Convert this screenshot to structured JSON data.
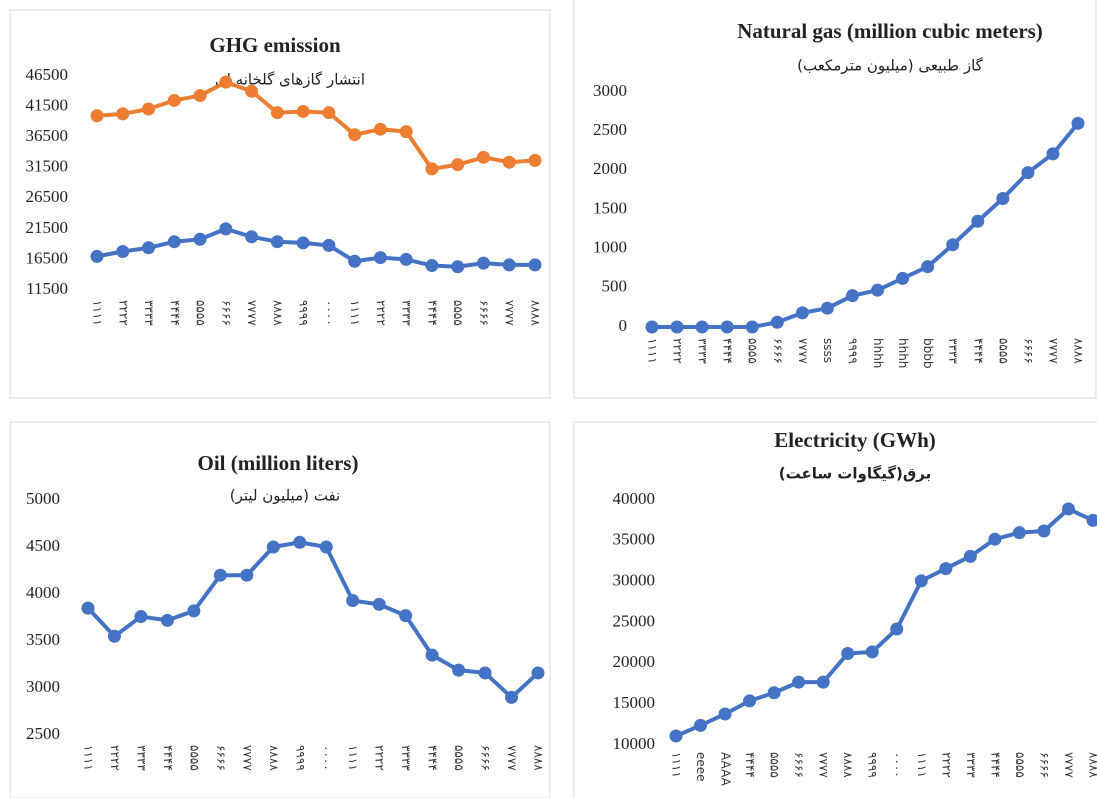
{
  "chart_data": [
    {
      "type": "line",
      "title": "GHG emission",
      "subtitle": "انتشار گازهای گلخانه ای",
      "categories": [
        "۱۱۱۱",
        "۲۲۲۲",
        "۳۳۳۳",
        "۴۴۴۴",
        "۵۵۵۵",
        "۶۶۶۶",
        "۷۷۷۷",
        "۸۸۸۸",
        "۹۹۹۹",
        "۰۰۰۰",
        "۱۱۱۱",
        "۲۲۲۲",
        "۳۳۳۳",
        "۴۴۴۴",
        "۵۵۵۵",
        "۶۶۶۶",
        "۷۷۷۷",
        "۸۸۸۸"
      ],
      "series": [
        {
          "color": "#ed7d31",
          "values": [
            40000,
            40300,
            41100,
            42500,
            43300,
            45500,
            44000,
            40500,
            40700,
            40500,
            36900,
            37800,
            37400,
            31300,
            32000,
            33200,
            32400,
            32700
          ]
        },
        {
          "color": "#4472c4",
          "values": [
            17000,
            17800,
            18400,
            19400,
            19800,
            21500,
            20200,
            19400,
            19200,
            18800,
            16200,
            16800,
            16500,
            15500,
            15300,
            15900,
            15600,
            15600
          ]
        }
      ],
      "ylim": [
        11500,
        46500
      ],
      "yticks": [
        11500,
        16500,
        21500,
        26500,
        31500,
        36500,
        41500,
        46500
      ]
    },
    {
      "type": "line",
      "title": "Natural gas (million cubic meters)",
      "subtitle": "گاز طبیعی (میلیون مترمکعب)",
      "categories": [
        "۱۱۱۱",
        "۲۲۲۲",
        "۳۳۳۳",
        "۴۴۴۴",
        "۵۵۵۵",
        "۶۶۶۶",
        "۷۷۷۷",
        "ssss",
        "۹۹۹۹",
        "hhhh",
        "hhhh",
        "bbbb",
        "۳۳۳۳",
        "۴۴۴۴",
        "۵۵۵۵",
        "۶۶۶۶",
        "۷۷۷۷",
        "۸۸۸۸"
      ],
      "series": [
        {
          "color": "#4472c4",
          "values": [
            0,
            0,
            0,
            0,
            0,
            60,
            180,
            240,
            400,
            470,
            620,
            770,
            1050,
            1350,
            1640,
            1970,
            2210,
            2600
          ]
        }
      ],
      "ylim": [
        0,
        3000
      ],
      "yticks": [
        0,
        500,
        1000,
        1500,
        2000,
        2500,
        3000
      ]
    },
    {
      "type": "line",
      "title": "Oil (million liters)",
      "subtitle": "نفت (میلیون لیتر)",
      "categories": [
        "۱۱۱۱",
        "۲۲۲۲",
        "۳۳۳۳",
        "۴۴۴۴",
        "۵۵۵۵",
        "۶۶۶۶",
        "۷۷۷۷",
        "۸۸۸۸",
        "۹۹۹۹",
        "۰۰۰۰",
        "۱۱۱۱",
        "۲۲۲۲",
        "۳۳۳۳",
        "۴۴۴۴",
        "۵۵۵۵",
        "۶۶۶۶",
        "۷۷۷۷",
        "۸۸۸۸"
      ],
      "series": [
        {
          "color": "#4472c4",
          "values": [
            3850,
            3550,
            3760,
            3720,
            3820,
            4200,
            4200,
            4500,
            4550,
            4500,
            3930,
            3890,
            3770,
            3350,
            3190,
            3160,
            2900,
            3160
          ]
        }
      ],
      "ylim": [
        2500,
        5000
      ],
      "yticks": [
        2500,
        3000,
        3500,
        4000,
        4500,
        5000
      ]
    },
    {
      "type": "line",
      "title": "Electricity (GWh)",
      "subtitle": "برق(گیگاوات ساعت)",
      "categories": [
        "۱۱۱۱",
        "eeee",
        "AAAA",
        "۴۴۴۴",
        "۵۵۵۵",
        "۶۶۶۶",
        "۷۷۷۷",
        "۸۸۸۸",
        "۹۹۹۹",
        "۰۰۰۰",
        "۱۱۱۱",
        "۲۲۲۲",
        "۳۳۳۳",
        "۴۴۴۴",
        "۵۵۵۵",
        "۶۶۶۶",
        "۷۷۷۷",
        "۸۸۸۸"
      ],
      "series": [
        {
          "color": "#4472c4",
          "values": [
            11100,
            12400,
            13800,
            15400,
            16400,
            17700,
            17700,
            21200,
            21400,
            24200,
            30100,
            31600,
            33100,
            35200,
            36000,
            36200,
            38900,
            37500
          ]
        }
      ],
      "ylim": [
        10000,
        40000
      ],
      "yticks": [
        10000,
        15000,
        20000,
        25000,
        30000,
        35000,
        40000
      ]
    }
  ]
}
